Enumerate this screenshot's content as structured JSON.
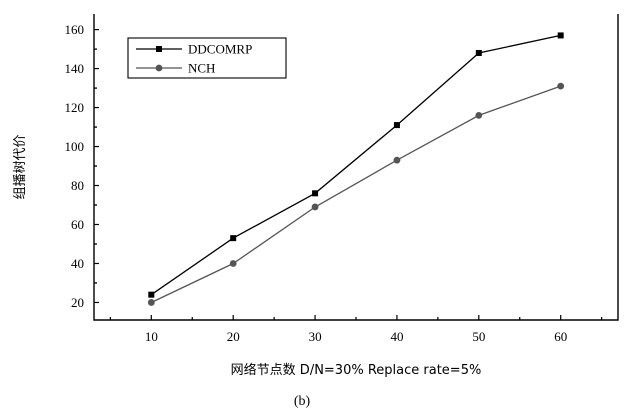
{
  "chart_data": {
    "type": "line",
    "x": [
      10,
      20,
      30,
      40,
      50,
      60
    ],
    "series": [
      {
        "name": "DDCOMRP",
        "values": [
          24,
          53,
          76,
          111,
          148,
          157
        ],
        "color": "#000000",
        "marker": "square"
      },
      {
        "name": "NCH",
        "values": [
          20,
          40,
          69,
          93,
          116,
          131
        ],
        "color": "#555555",
        "marker": "circle"
      }
    ],
    "xlabel": "网络节点数 D/N=30% Replace rate=5%",
    "ylabel": "组播树代价",
    "caption": "(b)",
    "xticks": [
      10,
      20,
      30,
      40,
      50,
      60
    ],
    "yticks": [
      20,
      40,
      60,
      80,
      100,
      120,
      140,
      160
    ],
    "xlim": [
      3,
      67
    ],
    "ylim": [
      11,
      168
    ],
    "legend_position": "top-left",
    "grid": false
  }
}
